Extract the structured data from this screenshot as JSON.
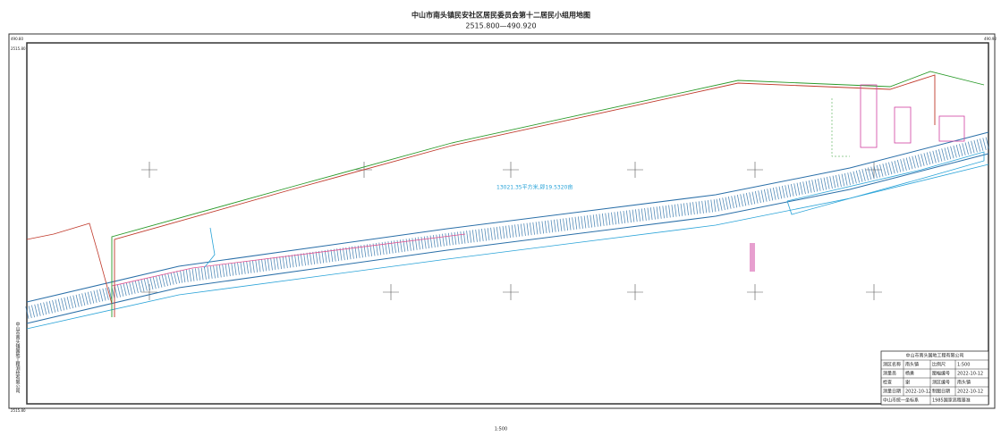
{
  "header": {
    "title": "中山市南头镇民安社区居民委员会第十二居民小组用地图",
    "subtitle": "2515.800—490.920"
  },
  "map": {
    "area_label": "13021.35平方米,即19.5320亩",
    "scale": "1:500",
    "corner_labels": [
      "490.80",
      "490.92",
      "2515.80",
      "2515.80"
    ],
    "side_text": "中山市南头镇国地工程测绘有限公司"
  },
  "title_block": {
    "company": "中山市南头国地工程有限公司",
    "rows": [
      [
        "测区名称",
        "南头镇",
        "比例尺",
        "1:500"
      ],
      [
        "测量员",
        "杨勇",
        "图幅编号",
        "2022-10-12"
      ],
      [
        "检查",
        "谢",
        "测区编号",
        "南头镇"
      ],
      [
        "测量日期",
        "2022-10-12",
        "制图日期",
        "2022-10-12"
      ],
      [
        "中山市统一坐标系",
        "1985国家高程基准"
      ]
    ]
  }
}
